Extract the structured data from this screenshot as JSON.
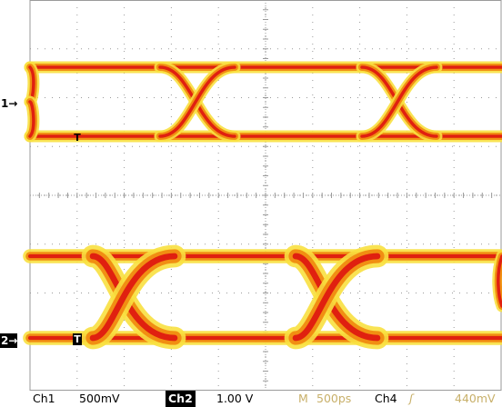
{
  "screen": {
    "background": "#ffffff",
    "grid_color": "#9a9a9a",
    "trace_colors": {
      "core": "#e02010",
      "mid": "#f08a10",
      "halo": "#f8e040"
    }
  },
  "markers": {
    "ch1": "1",
    "ch2": "2",
    "trigger": "T"
  },
  "status": {
    "ch1_name": "Ch1",
    "ch1_scale": "500mV",
    "ch2_name": "Ch2",
    "ch2_scale": "1.00 V",
    "timebase_label": "M",
    "timebase": "500ps",
    "trigger_source": "Ch4",
    "trigger_slope_icon": "rising-edge-icon",
    "trigger_level": "440mV"
  }
}
